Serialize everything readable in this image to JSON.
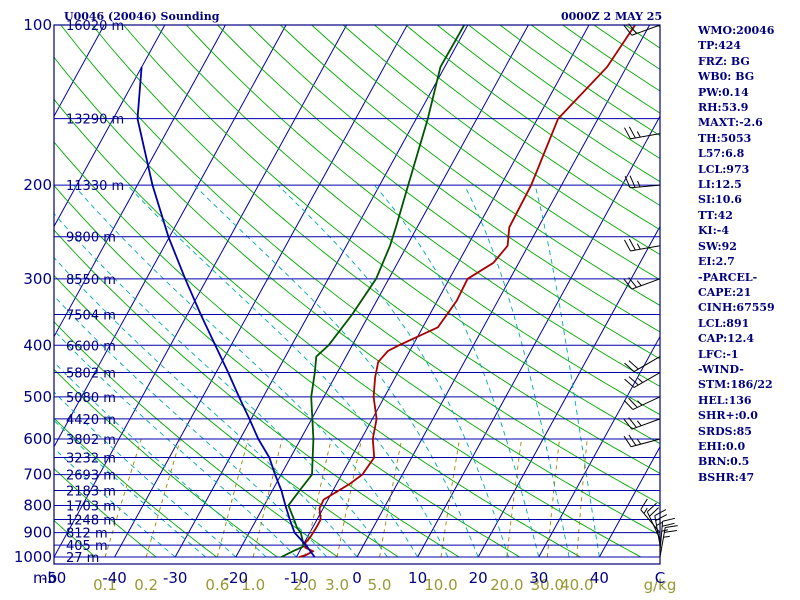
{
  "header": {
    "station": "U0046 (20046) Sounding",
    "time": "0000Z  2 MAY 25"
  },
  "indices": [
    "WMO:20046",
    "TP:424",
    "FRZ: BG",
    "WB0: BG",
    "PW:0.14",
    "RH:53.9",
    "MAXT:-2.6",
    "TH:5053",
    "L57:6.8",
    "LCL:973",
    "LI:12.5",
    "SI:10.6",
    "TT:42",
    "KI:-4",
    "SW:92",
    "EI:2.7",
    "-PARCEL-",
    "CAPE:21",
    "CINH:67559",
    "LCL:891",
    "CAP:12.4",
    "LFC:-1",
    "-WIND-",
    "STM:186/22",
    "HEL:136",
    "SHR+:0.0",
    "SRDS:85",
    "EHI:0.0",
    "BRN:0.5",
    "BSHR:47"
  ],
  "chart_data": {
    "type": "line",
    "title": "U0046 (20046) Sounding",
    "y_axis": {
      "unit": "mb",
      "scale": "log",
      "range": [
        1000,
        100
      ],
      "ticks": [
        100,
        200,
        300,
        400,
        500,
        600,
        700,
        800,
        900,
        1000
      ]
    },
    "x_axis": {
      "unit": "C",
      "range": [
        -50,
        50
      ],
      "ticks": [
        -50,
        -40,
        -30,
        -20,
        -10,
        0,
        10,
        20,
        30,
        40
      ]
    },
    "mixing_ratio_labels": {
      "unit": "g/kg",
      "values": [
        "0.1",
        "0.2",
        "0.6",
        "1.0",
        "2.0",
        "3.0",
        "5.0",
        "10.0",
        "20.0",
        "30.0",
        "40.0"
      ]
    },
    "heights": [
      {
        "p": 100,
        "label": "16020 m"
      },
      {
        "p": 150,
        "label": "13290 m"
      },
      {
        "p": 200,
        "label": "11330 m"
      },
      {
        "p": 250,
        "label": "9800 m"
      },
      {
        "p": 300,
        "label": "8550 m"
      },
      {
        "p": 350,
        "label": "7504 m"
      },
      {
        "p": 400,
        "label": "6600 m"
      },
      {
        "p": 450,
        "label": "5802 m"
      },
      {
        "p": 500,
        "label": "5080 m"
      },
      {
        "p": 550,
        "label": "4420 m"
      },
      {
        "p": 600,
        "label": "3802 m"
      },
      {
        "p": 650,
        "label": "3232 m"
      },
      {
        "p": 700,
        "label": "2693 m"
      },
      {
        "p": 750,
        "label": "2183 m"
      },
      {
        "p": 800,
        "label": "1703 m"
      },
      {
        "p": 850,
        "label": "1248 m"
      },
      {
        "p": 900,
        "label": "812 m"
      },
      {
        "p": 950,
        "label": "405 m"
      },
      {
        "p": 1000,
        "label": "27 m"
      }
    ],
    "series": [
      {
        "color": "#aa0000",
        "points": [
          [
            1000,
            -9.5
          ],
          [
            990,
            -8.5
          ],
          [
            975,
            -7.8
          ],
          [
            960,
            -9.4
          ],
          [
            940,
            -9.8
          ],
          [
            915,
            -9.5
          ],
          [
            880,
            -9.4
          ],
          [
            850,
            -9.4
          ],
          [
            810,
            -10.6
          ],
          [
            780,
            -10.7
          ],
          [
            730,
            -7.9
          ],
          [
            700,
            -6.6
          ],
          [
            650,
            -6.2
          ],
          [
            600,
            -8.1
          ],
          [
            550,
            -9.3
          ],
          [
            500,
            -11.8
          ],
          [
            460,
            -13.3
          ],
          [
            430,
            -14.2
          ],
          [
            410,
            -13.6
          ],
          [
            400,
            -12.3
          ],
          [
            370,
            -7.5
          ],
          [
            330,
            -6.8
          ],
          [
            300,
            -7.0
          ],
          [
            280,
            -4.2
          ],
          [
            260,
            -3.4
          ],
          [
            240,
            -4.8
          ],
          [
            200,
            -5.0
          ],
          [
            150,
            -6.6
          ],
          [
            120,
            -3.2
          ],
          [
            100,
            -2.4
          ]
        ]
      },
      {
        "color": "#005500",
        "points": [
          [
            1000,
            -12.5
          ],
          [
            975,
            -11.1
          ],
          [
            955,
            -9.8
          ],
          [
            930,
            -10.5
          ],
          [
            900,
            -11.5
          ],
          [
            880,
            -12.6
          ],
          [
            850,
            -13.8
          ],
          [
            800,
            -16.0
          ],
          [
            750,
            -15.5
          ],
          [
            700,
            -14.9
          ],
          [
            600,
            -17.9
          ],
          [
            500,
            -22.1
          ],
          [
            450,
            -23.7
          ],
          [
            420,
            -24.9
          ],
          [
            400,
            -23.9
          ],
          [
            350,
            -22.8
          ],
          [
            300,
            -22.1
          ],
          [
            260,
            -22.8
          ],
          [
            240,
            -23.5
          ],
          [
            200,
            -25.3
          ],
          [
            150,
            -28.1
          ],
          [
            120,
            -30.7
          ],
          [
            100,
            -30.6
          ]
        ]
      },
      {
        "color": "#0000aa",
        "points": [
          [
            1000,
            -7.0
          ],
          [
            950,
            -9.5
          ],
          [
            900,
            -12.5
          ],
          [
            850,
            -14.5
          ],
          [
            800,
            -16.5
          ],
          [
            750,
            -18.5
          ],
          [
            700,
            -21.0
          ],
          [
            650,
            -23.5
          ],
          [
            600,
            -27.0
          ],
          [
            550,
            -30.3
          ],
          [
            500,
            -34.0
          ],
          [
            450,
            -38.0
          ],
          [
            400,
            -42.6
          ],
          [
            350,
            -47.8
          ],
          [
            300,
            -53.6
          ],
          [
            250,
            -60.2
          ],
          [
            200,
            -67.5
          ],
          [
            150,
            -76.0
          ],
          [
            120,
            -80.0
          ]
        ]
      }
    ],
    "wind_barbs": [
      {
        "p": 1000,
        "dir": 10,
        "kt": 25
      },
      {
        "p": 975,
        "dir": 5,
        "kt": 25
      },
      {
        "p": 950,
        "dir": 350,
        "kt": 25
      },
      {
        "p": 925,
        "dir": 335,
        "kt": 20
      },
      {
        "p": 900,
        "dir": 320,
        "kt": 15
      },
      {
        "p": 600,
        "dir": 255,
        "kt": 25
      },
      {
        "p": 550,
        "dir": 250,
        "kt": 25
      },
      {
        "p": 500,
        "dir": 245,
        "kt": 25
      },
      {
        "p": 450,
        "dir": 240,
        "kt": 25
      },
      {
        "p": 420,
        "dir": 240,
        "kt": 20
      },
      {
        "p": 300,
        "dir": 250,
        "kt": 25
      },
      {
        "p": 260,
        "dir": 260,
        "kt": 25
      },
      {
        "p": 200,
        "dir": 265,
        "kt": 25
      },
      {
        "p": 160,
        "dir": 260,
        "kt": 25
      },
      {
        "p": 100,
        "dir": 250,
        "kt": 20
      }
    ],
    "colors": {
      "isobar": "#0000aa",
      "isotherm": "#0000aa",
      "dry_adiabat": "#00aa00",
      "moist_adiabat": "#00aaaa",
      "mixing_ratio": "#998800",
      "label": "#000080"
    }
  }
}
